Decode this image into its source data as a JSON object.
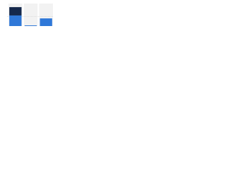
{
  "chart_data": {
    "type": "bar",
    "stacked": true,
    "categories": [
      null,
      null,
      null
    ],
    "series": [
      {
        "color": "#2f78d8",
        "values": [
          47,
          3,
          34
        ]
      },
      {
        "color": "#14284b",
        "values": [
          37,
          null,
          null
        ]
      }
    ],
    "ylim": [
      0,
      100
    ]
  }
}
